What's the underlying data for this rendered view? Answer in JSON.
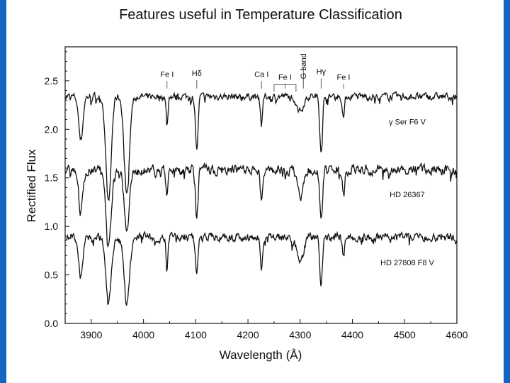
{
  "slide": {
    "title": "Features useful in Temperature Classification",
    "side_bar_color": "#1565c0"
  },
  "chart_data": {
    "type": "line",
    "xlabel": "Wavelength (Å)",
    "ylabel": "Rectified Flux",
    "xlim": [
      3850,
      4600
    ],
    "ylim": [
      0.0,
      2.85
    ],
    "x_ticks": [
      3900,
      4000,
      4100,
      4200,
      4300,
      4400,
      4500,
      4600
    ],
    "y_ticks": [
      0.0,
      0.5,
      1.0,
      1.5,
      2.0,
      2.5
    ],
    "grid": false,
    "line_color": "#111111",
    "features": [
      {
        "text": "Fe I",
        "x": 4045,
        "y": 2.54
      },
      {
        "text": "Hδ",
        "x": 4102,
        "y": 2.55
      },
      {
        "text": "Ca I",
        "x": 4226,
        "y": 2.54
      },
      {
        "text": "Fe I",
        "x": 4271,
        "y": 2.51
      },
      {
        "text": "G band",
        "x": 4306,
        "y": 2.68
      },
      {
        "text": "Hγ",
        "x": 4340,
        "y": 2.57
      },
      {
        "text": "Fe I",
        "x": 4383,
        "y": 2.51
      }
    ],
    "series": [
      {
        "name": "γ Ser  F6 V",
        "label_pos": [
          4505,
          2.05
        ],
        "continuum": 2.35,
        "noise": 0.05,
        "lines": [
          {
            "x": 3880,
            "depth": 0.45,
            "width": 4
          },
          {
            "x": 3933,
            "depth": 1.1,
            "width": 5
          },
          {
            "x": 3968,
            "depth": 1.0,
            "width": 5
          },
          {
            "x": 4045,
            "depth": 0.25,
            "width": 2
          },
          {
            "x": 4102,
            "depth": 0.55,
            "width": 2.5
          },
          {
            "x": 4226,
            "depth": 0.3,
            "width": 2
          },
          {
            "x": 4300,
            "depth": 0.15,
            "width": 6
          },
          {
            "x": 4340,
            "depth": 0.55,
            "width": 2.5
          },
          {
            "x": 4383,
            "depth": 0.22,
            "width": 2
          }
        ]
      },
      {
        "name": "HD 26367",
        "label_pos": [
          4505,
          1.3
        ],
        "continuum": 1.6,
        "noise": 0.07,
        "lines": [
          {
            "x": 3880,
            "depth": 0.45,
            "width": 4
          },
          {
            "x": 3933,
            "depth": 0.78,
            "width": 5
          },
          {
            "x": 3968,
            "depth": 0.6,
            "width": 5
          },
          {
            "x": 4045,
            "depth": 0.28,
            "width": 2
          },
          {
            "x": 4102,
            "depth": 0.5,
            "width": 2.5
          },
          {
            "x": 4226,
            "depth": 0.3,
            "width": 2
          },
          {
            "x": 4300,
            "depth": 0.28,
            "width": 6
          },
          {
            "x": 4340,
            "depth": 0.55,
            "width": 2.5
          },
          {
            "x": 4383,
            "depth": 0.22,
            "width": 2
          }
        ]
      },
      {
        "name": "HD 27808  F8 V",
        "label_pos": [
          4505,
          0.6
        ],
        "continuum": 0.9,
        "noise": 0.06,
        "lines": [
          {
            "x": 3880,
            "depth": 0.42,
            "width": 4
          },
          {
            "x": 3933,
            "depth": 0.7,
            "width": 5
          },
          {
            "x": 3968,
            "depth": 0.7,
            "width": 5
          },
          {
            "x": 4045,
            "depth": 0.28,
            "width": 2
          },
          {
            "x": 4102,
            "depth": 0.38,
            "width": 2.5
          },
          {
            "x": 4226,
            "depth": 0.32,
            "width": 2
          },
          {
            "x": 4300,
            "depth": 0.28,
            "width": 6
          },
          {
            "x": 4340,
            "depth": 0.5,
            "width": 2.5
          },
          {
            "x": 4383,
            "depth": 0.2,
            "width": 2
          }
        ]
      }
    ]
  }
}
